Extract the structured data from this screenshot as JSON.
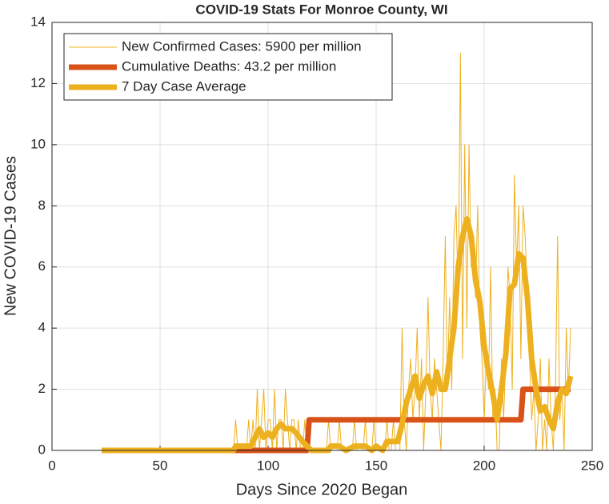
{
  "chart_data": {
    "type": "line",
    "title": "COVID-19 Stats For Monroe County, WI",
    "xlabel": "Days Since 2020 Began",
    "ylabel": "New COVID-19 Cases",
    "xlim": [
      0,
      250
    ],
    "xticks": [
      0,
      50,
      100,
      150,
      200,
      250
    ],
    "ylim": [
      0,
      14
    ],
    "yticks": [
      0,
      2,
      4,
      6,
      8,
      10,
      12,
      14
    ],
    "grid": true,
    "legend": "upper left",
    "series": [
      {
        "name": "New Confirmed Cases: 5900 per million",
        "color": "#EDB120",
        "width": 1,
        "x": [
          23,
          84,
          85,
          86,
          87,
          88,
          89,
          90,
          91,
          92,
          93,
          94,
          95,
          96,
          97,
          98,
          99,
          100,
          101,
          102,
          103,
          104,
          105,
          106,
          107,
          108,
          109,
          110,
          111,
          112,
          113,
          114,
          115,
          116,
          117,
          118,
          119,
          120,
          121,
          122,
          123,
          124,
          125,
          126,
          127,
          128,
          129,
          130,
          131,
          132,
          133,
          134,
          135,
          136,
          137,
          138,
          139,
          140,
          141,
          142,
          143,
          144,
          145,
          146,
          147,
          148,
          149,
          150,
          151,
          152,
          153,
          154,
          155,
          156,
          157,
          158,
          159,
          160,
          161,
          162,
          163,
          164,
          165,
          166,
          167,
          168,
          169,
          170,
          171,
          172,
          173,
          174,
          175,
          176,
          177,
          178,
          179,
          180,
          181,
          182,
          183,
          184,
          185,
          186,
          187,
          188,
          189,
          190,
          191,
          192,
          193,
          194,
          195,
          196,
          197,
          198,
          199,
          200,
          201,
          202,
          203,
          204,
          205,
          206,
          207,
          208,
          209,
          210,
          211,
          212,
          213,
          214,
          215,
          216,
          217,
          218,
          219,
          220,
          221,
          222,
          223,
          224,
          225,
          226,
          227,
          228,
          229,
          230,
          231,
          232,
          233,
          234,
          235,
          236,
          237,
          238,
          239,
          240
        ],
        "values": [
          0,
          0,
          1,
          0,
          0,
          0,
          0,
          0,
          1,
          0,
          1,
          0,
          2,
          0,
          1,
          2,
          0,
          1,
          1,
          0,
          2,
          0,
          1,
          1,
          0,
          2,
          1,
          0,
          1,
          1,
          0,
          1,
          0,
          0,
          1,
          0,
          0,
          0,
          0,
          0,
          0,
          0,
          0,
          0,
          0,
          1,
          0,
          0,
          0,
          0,
          1,
          0,
          0,
          0,
          0,
          0,
          0,
          1,
          0,
          0,
          0,
          0,
          1,
          0,
          0,
          0,
          1,
          0,
          0,
          0,
          0,
          0,
          1,
          0,
          0,
          1,
          0,
          0,
          0,
          4,
          1,
          0,
          2,
          3,
          1,
          2,
          4,
          1,
          3,
          0,
          2,
          5,
          2,
          1,
          3,
          2,
          1,
          0,
          3,
          7,
          2,
          5,
          2,
          7,
          8,
          5,
          13,
          3,
          10,
          4,
          10,
          6,
          7,
          5,
          8,
          4,
          3,
          1,
          3,
          2,
          6,
          1,
          2,
          0,
          0,
          3,
          1,
          3,
          6,
          5,
          2,
          9,
          6,
          8,
          3,
          8,
          7,
          5,
          3,
          1,
          2,
          0,
          1,
          3,
          0,
          1,
          0,
          3,
          1,
          0,
          2,
          7,
          1,
          2,
          0,
          4,
          2,
          4
        ]
      },
      {
        "name": "Cumulative Deaths: 43.2 per million",
        "color": "#D95319",
        "width": 7,
        "x": [
          23,
          118,
          119,
          217,
          218,
          240
        ],
        "values": [
          0,
          0,
          1,
          1,
          2,
          2
        ]
      },
      {
        "name": "7 Day Case Average",
        "color": "#EDB120",
        "width": 7,
        "x": [
          23,
          84,
          85,
          92,
          94,
          96,
          98,
          100,
          102,
          104,
          106,
          108,
          111,
          113,
          116,
          118,
          120,
          128,
          129,
          133,
          136,
          140,
          145,
          148,
          150,
          153,
          155,
          160,
          162,
          164,
          166,
          168,
          170,
          172,
          174,
          176,
          178,
          180,
          182,
          184,
          186,
          188,
          190,
          192,
          194,
          196,
          198,
          200,
          202,
          204,
          206,
          208,
          210,
          212,
          214,
          216,
          218,
          220,
          222,
          224,
          226,
          228,
          230,
          232,
          234,
          236,
          238,
          240
        ],
        "values": [
          0,
          0,
          0.14,
          0.14,
          0.43,
          0.7,
          0.43,
          0.57,
          0.43,
          0.71,
          0.86,
          0.71,
          0.71,
          0.57,
          0.29,
          0.14,
          0,
          0,
          0.14,
          0.14,
          0,
          0.14,
          0.14,
          0,
          0.14,
          0,
          0.29,
          0.29,
          0.86,
          1.57,
          2.0,
          2.43,
          1.71,
          2.14,
          2.43,
          1.86,
          2.57,
          2.0,
          2.0,
          3.0,
          4.0,
          6.0,
          7.0,
          7.57,
          7.0,
          5.57,
          4.86,
          3.43,
          2.57,
          1.86,
          1.0,
          2.0,
          3.14,
          5.29,
          5.43,
          6.43,
          6.29,
          5.0,
          3.0,
          2.0,
          1.29,
          1.43,
          1.0,
          0.71,
          1.57,
          2.0,
          1.86,
          2.43
        ]
      }
    ]
  }
}
